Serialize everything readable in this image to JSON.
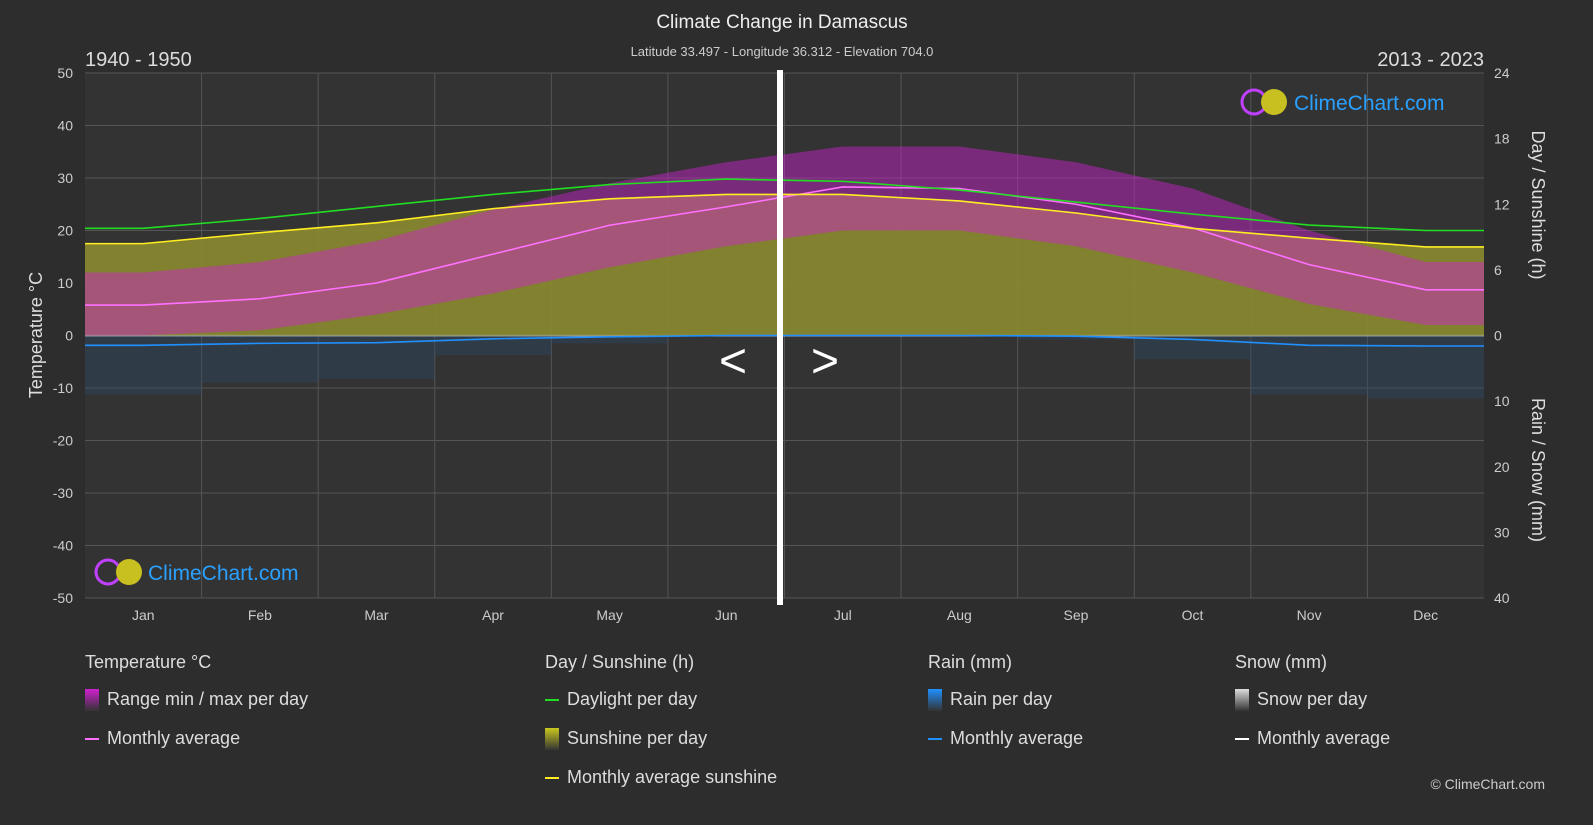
{
  "title": "Climate Change in Damascus",
  "subtitle": "Latitude 33.497 - Longitude 36.312 - Elevation 704.0",
  "period_left": "1940 - 1950",
  "period_right": "2013 - 2023",
  "nav": {
    "prev": "<",
    "next": ">"
  },
  "watermark": "ClimeChart.com",
  "copyright": "© ClimeChart.com",
  "colors": {
    "background": "#2d2d2d",
    "temp_range": "#d020d0",
    "temp_avg": "#ff70ff",
    "daylight": "#22dd22",
    "sunshine": "#c8c820",
    "sunshine_avg": "#ffee22",
    "rain": "#2090ff",
    "snow": "#ffffff"
  },
  "chart_data": {
    "type": "line",
    "categories": [
      "Jan",
      "Feb",
      "Mar",
      "Apr",
      "May",
      "Jun",
      "Jul",
      "Aug",
      "Sep",
      "Oct",
      "Nov",
      "Dec"
    ],
    "ylabel_left": "Temperature °C",
    "ylabel_right_top": "Day / Sunshine (h)",
    "ylabel_right_bottom": "Rain / Snow (mm)",
    "ylim_left": [
      -50,
      50
    ],
    "yticks_left": [
      "50",
      "40",
      "30",
      "20",
      "10",
      "0",
      "-10",
      "-20",
      "-30",
      "-40",
      "-50"
    ],
    "yticks_right_top": [
      "24",
      "18",
      "12",
      "6",
      "0"
    ],
    "yticks_right_bottom": [
      "10",
      "20",
      "30",
      "40"
    ],
    "ylim_sun": [
      0,
      24
    ],
    "ylim_rain": [
      0,
      40
    ],
    "grid": true,
    "series": [
      {
        "name": "Monthly average",
        "group": "temperature",
        "values": [
          5.8,
          7.0,
          10.0,
          15.5,
          21.0,
          24.5,
          28.3,
          28.0,
          25.0,
          20.5,
          13.5,
          8.7
        ]
      },
      {
        "name": "Daylight per day",
        "group": "sun",
        "values": [
          9.8,
          10.7,
          11.8,
          12.9,
          13.8,
          14.3,
          14.1,
          13.3,
          12.2,
          11.1,
          10.1,
          9.6
        ]
      },
      {
        "name": "Monthly average sunshine",
        "group": "sun",
        "values": [
          8.4,
          9.4,
          10.3,
          11.6,
          12.5,
          12.9,
          12.9,
          12.3,
          11.2,
          9.8,
          8.9,
          8.1
        ]
      },
      {
        "name": "Monthly average",
        "group": "rain",
        "values": [
          1.5,
          1.2,
          1.1,
          0.5,
          0.2,
          0.0,
          0.0,
          0.0,
          0.1,
          0.6,
          1.5,
          1.6
        ]
      }
    ],
    "temp_range_min": [
      0,
      1,
      4,
      8,
      13,
      17,
      20,
      20,
      17,
      12,
      6,
      2
    ],
    "temp_range_max": [
      12,
      14,
      18,
      24,
      29,
      33,
      36,
      36,
      33,
      28,
      20,
      14
    ]
  },
  "legend": [
    {
      "heading": "Temperature °C",
      "items": [
        {
          "label": "Range min / max per day",
          "kind": "swatch",
          "color": "#d020d0"
        },
        {
          "label": "Monthly average",
          "kind": "line",
          "color": "#ff70ff"
        }
      ]
    },
    {
      "heading": "Day / Sunshine (h)",
      "items": [
        {
          "label": "Daylight per day",
          "kind": "line",
          "color": "#22dd22"
        },
        {
          "label": "Sunshine per day",
          "kind": "swatch",
          "color": "#c8c820"
        },
        {
          "label": "Monthly average sunshine",
          "kind": "line",
          "color": "#ffee22"
        }
      ]
    },
    {
      "heading": "Rain (mm)",
      "items": [
        {
          "label": "Rain per day",
          "kind": "swatch",
          "color": "#2090ff"
        },
        {
          "label": "Monthly average",
          "kind": "line",
          "color": "#2090ff"
        }
      ]
    },
    {
      "heading": "Snow (mm)",
      "items": [
        {
          "label": "Snow per day",
          "kind": "swatch",
          "color": "#dddddd"
        },
        {
          "label": "Monthly average",
          "kind": "line",
          "color": "#ffffff"
        }
      ]
    }
  ]
}
